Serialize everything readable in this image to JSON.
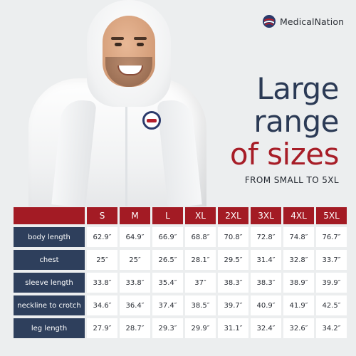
{
  "brand": {
    "name": "MedicalNation",
    "colors": {
      "navy": "#2e3f5c",
      "red": "#a31b24"
    }
  },
  "headline": {
    "line1": "Large",
    "line2": "range",
    "line3": "of sizes",
    "subline": "FROM SMALL TO 5XL"
  },
  "size_chart": {
    "columns": [
      "S",
      "M",
      "L",
      "XL",
      "2XL",
      "3XL",
      "4XL",
      "5XL"
    ],
    "rows": [
      {
        "label": "body length",
        "values": [
          "62.9″",
          "64.9″",
          "66.9″",
          "68.8″",
          "70.8″",
          "72.8″",
          "74.8″",
          "76.7″"
        ]
      },
      {
        "label": "chest",
        "values": [
          "25″",
          "25″",
          "26.5″",
          "28.1″",
          "29.5″",
          "31.4″",
          "32.8″",
          "33.7″"
        ]
      },
      {
        "label": "sleeve length",
        "values": [
          "33.8″",
          "33.8″",
          "35.4″",
          "37″",
          "38.3″",
          "38.3″",
          "38.9″",
          "39.9″"
        ]
      },
      {
        "label": "neckline to crotch",
        "values": [
          "34.6″",
          "36.4″",
          "37.4″",
          "38.5″",
          "39.7″",
          "40.9″",
          "41.9″",
          "42.5″"
        ]
      },
      {
        "label": "leg length",
        "values": [
          "27.9″",
          "28.7″",
          "29.3″",
          "29.9″",
          "31.1″",
          "32.4″",
          "32.6″",
          "34.2″"
        ]
      }
    ]
  }
}
